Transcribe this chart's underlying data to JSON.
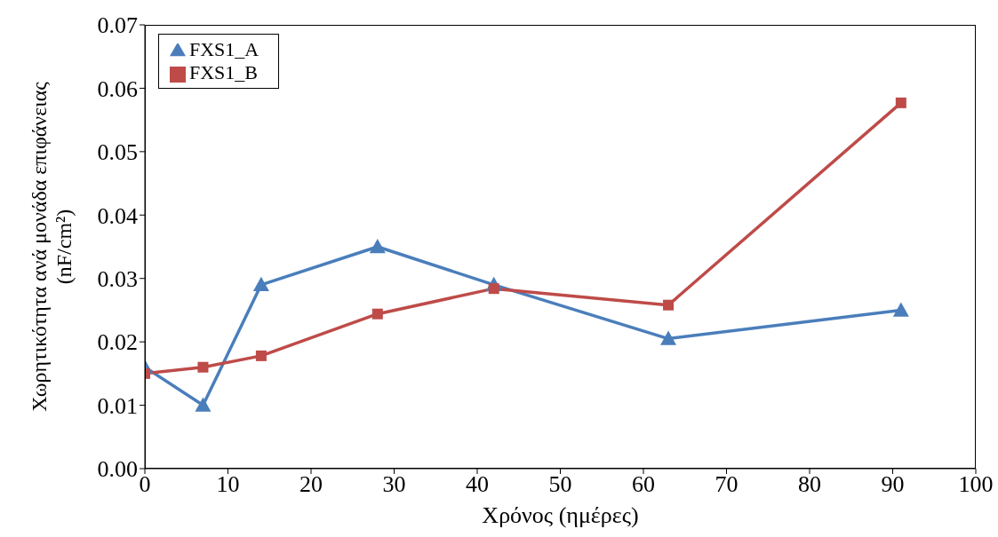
{
  "chart_data": {
    "type": "line",
    "xlabel": "Χρόνος (ημέρες)",
    "ylabel": "Χωρητικότητα ανά μονάδα επιφάνειας (nF/cm²)",
    "x": [
      0,
      7,
      14,
      28,
      42,
      63,
      91
    ],
    "series": [
      {
        "name": "FXS1_A",
        "color": "#4a7ebb",
        "marker": "triangle",
        "values": [
          0.016,
          0.01,
          0.029,
          0.035,
          0.029,
          0.0205,
          0.025
        ]
      },
      {
        "name": "FXS1_B",
        "color": "#be4b48",
        "marker": "square",
        "values": [
          0.015,
          0.016,
          0.0178,
          0.0244,
          0.0284,
          0.0258,
          0.0577
        ]
      }
    ],
    "xlim": [
      0,
      100
    ],
    "xticks": [
      0,
      10,
      20,
      30,
      40,
      50,
      60,
      70,
      80,
      90,
      100
    ],
    "ylim": [
      0,
      0.07
    ],
    "yticks": [
      {
        "value": 0,
        "label": "0.00"
      },
      {
        "value": 0.01,
        "label": "0.01"
      },
      {
        "value": 0.02,
        "label": "0.02"
      },
      {
        "value": 0.03,
        "label": "0.03"
      },
      {
        "value": 0.04,
        "label": "0.04"
      },
      {
        "value": 0.05,
        "label": "0.05"
      },
      {
        "value": 0.06,
        "label": "0.06"
      },
      {
        "value": 0.07,
        "label": "0.07"
      }
    ],
    "grid": false,
    "legend": "top left",
    "line_style": "solid"
  }
}
